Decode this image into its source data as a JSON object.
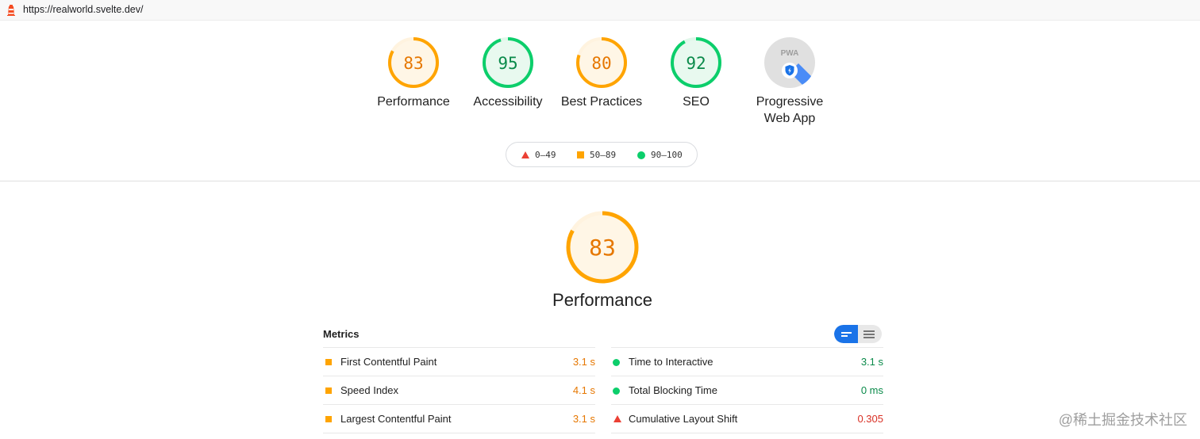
{
  "address_bar": {
    "url": "https://realworld.svelte.dev/",
    "icon": "lighthouse-icon"
  },
  "colors": {
    "fail": "#eb4034",
    "average": "#ffa400",
    "pass": "#0cce6b",
    "average_text": "#e67700",
    "pass_text": "#0a8a4a",
    "fail_text": "#d93025"
  },
  "categories": [
    {
      "id": "performance",
      "score": 83,
      "label": "Performance",
      "rating": "average"
    },
    {
      "id": "accessibility",
      "score": 95,
      "label": "Accessibility",
      "rating": "pass"
    },
    {
      "id": "best-practices",
      "score": 80,
      "label": "Best Practices",
      "rating": "average"
    },
    {
      "id": "seo",
      "score": 92,
      "label": "SEO",
      "rating": "pass"
    },
    {
      "id": "pwa",
      "score": null,
      "label_line1": "Progressive",
      "label_line2": "Web App",
      "badge_text": "PWA",
      "rating": "na"
    }
  ],
  "legend": [
    {
      "range": "0–49",
      "shape": "triangle"
    },
    {
      "range": "50–89",
      "shape": "square"
    },
    {
      "range": "90–100",
      "shape": "circle"
    }
  ],
  "performance_section": {
    "score": 83,
    "title": "Performance"
  },
  "metrics": {
    "header": "Metrics",
    "left": [
      {
        "name": "First Contentful Paint",
        "value": "3.1 s",
        "rating": "average"
      },
      {
        "name": "Speed Index",
        "value": "4.1 s",
        "rating": "average"
      },
      {
        "name": "Largest Contentful Paint",
        "value": "3.1 s",
        "rating": "average"
      }
    ],
    "right": [
      {
        "name": "Time to Interactive",
        "value": "3.1 s",
        "rating": "pass"
      },
      {
        "name": "Total Blocking Time",
        "value": "0 ms",
        "rating": "pass"
      },
      {
        "name": "Cumulative Layout Shift",
        "value": "0.305",
        "rating": "fail"
      }
    ]
  },
  "watermark": "@稀土掘金技术社区"
}
